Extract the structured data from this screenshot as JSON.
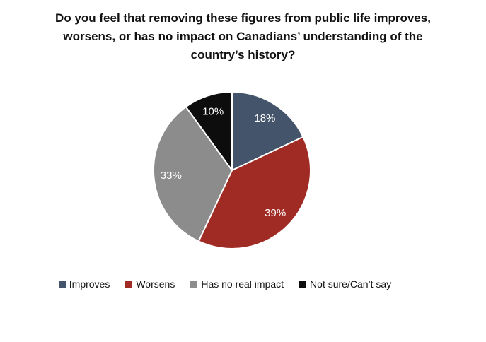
{
  "chart_data": {
    "type": "pie",
    "title": "Do you feel that removing these figures from public life improves, worsens, or has no impact on Canadians’ understanding of the country’s history?",
    "title_lines": [
      "Do you feel that removing these figures from public life improves,",
      "worsens, or has no impact on Canadians’ understanding of the",
      "country’s history?"
    ],
    "slices": [
      {
        "label": "Improves",
        "value": 18,
        "display": "18%",
        "color": "#44546A"
      },
      {
        "label": "Worsens",
        "value": 39,
        "display": "39%",
        "color": "#A02B25"
      },
      {
        "label": "Has no real impact",
        "value": 33,
        "display": "33%",
        "color": "#8C8C8C"
      },
      {
        "label": "Not sure/Can’t say",
        "value": 10,
        "display": "10%",
        "color": "#0D0D0D"
      }
    ],
    "start_angle_deg": 0,
    "direction": "clockwise",
    "slice_border_color": "#FFFFFF",
    "data_label_color": "#FFFFFF",
    "label_radius_ratio": 0.78,
    "legend_position": "bottom",
    "background_color": "#FFFFFF"
  }
}
